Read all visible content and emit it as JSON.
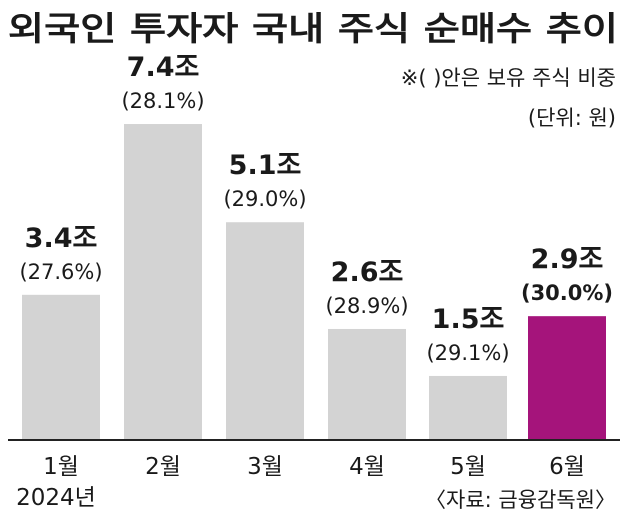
{
  "chart_data": {
    "type": "bar",
    "title": "외국인 투자자 국내 주식 순매수 추이",
    "note": "※(  )안은 보유 주식 비중",
    "unit": "(단위: 원)",
    "categories": [
      "1월",
      "2월",
      "3월",
      "4월",
      "5월",
      "6월"
    ],
    "year_label": "2024년",
    "values": [
      3.4,
      7.4,
      5.1,
      2.6,
      1.5,
      2.9
    ],
    "value_labels": [
      "3.4조",
      "7.4조",
      "5.1조",
      "2.6조",
      "1.5조",
      "2.9조"
    ],
    "share_labels": [
      "(27.6%)",
      "(28.1%)",
      "(29.0%)",
      "(28.9%)",
      "(29.1%)",
      "(30.0%)"
    ],
    "highlight_index": 5,
    "bar_color": "#d3d3d3",
    "highlight_color": "#a5147b",
    "source": "〈자료: 금융감독원〉"
  }
}
